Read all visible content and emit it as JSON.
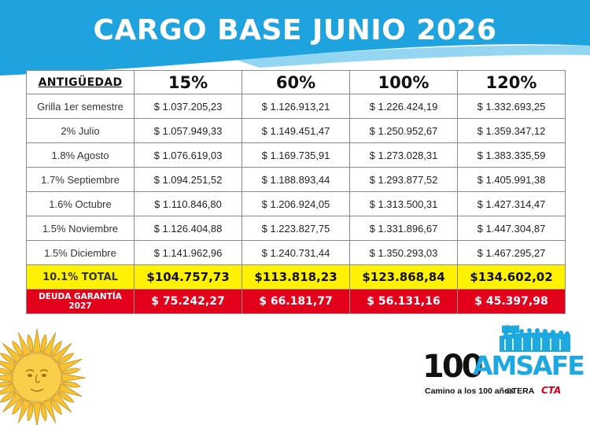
{
  "title": "CARGO BASE JUNIO 2026",
  "table": {
    "corner_header": "ANTIGÜEDAD",
    "columns": [
      "15%",
      "60%",
      "100%",
      "120%"
    ],
    "rows": [
      {
        "label": "Grilla 1er semestre",
        "values": [
          "$ 1.037.205,23",
          "$ 1.126.913,21",
          "$ 1.226.424,19",
          "$ 1.332.693,25"
        ]
      },
      {
        "label": "2% Julio",
        "values": [
          "$ 1.057.949,33",
          "$ 1.149.451,47",
          "$ 1.250.952,67",
          "$ 1.359.347,12"
        ]
      },
      {
        "label": "1.8% Agosto",
        "values": [
          "$ 1.076.619,03",
          "$ 1.169.735,91",
          "$ 1.273.028,31",
          "$ 1.383.335,59"
        ]
      },
      {
        "label": "1.7% Septiembre",
        "values": [
          "$ 1.094.251,52",
          "$ 1.188.893,44",
          "$ 1.293.877,52",
          "$ 1.405.991,38"
        ]
      },
      {
        "label": "1.6% Octubre",
        "values": [
          "$ 1.110.846,80",
          "$ 1.206.924,05",
          "$ 1.313.500,31",
          "$ 1.427.314,47"
        ]
      },
      {
        "label": "1.5% Noviembre",
        "values": [
          "$ 1.126.404,88",
          "$ 1.223.827,75",
          "$ 1.331.896,67",
          "$ 1.447.304,87"
        ]
      },
      {
        "label": "1.5% Diciembre",
        "values": [
          "$ 1.141.962,96",
          "$ 1.240.731,44",
          "$ 1.350.293,03",
          "$ 1.467.295,27"
        ]
      }
    ],
    "total": {
      "label": "10.1% TOTAL",
      "values": [
        "$104.757,73",
        "$113.818,23",
        "$123.868,84",
        "$134.602,02"
      ]
    },
    "debt": {
      "label": "DEUDA GARANTÍA 2027",
      "values": [
        "$ 75.242,27",
        "$ 66.181,77",
        "$ 56.131,16",
        "$ 45.397,98"
      ]
    }
  },
  "logo": {
    "number": "100",
    "name": "AMSAFE",
    "tagline": "Camino a los 100 años",
    "affiliation_1": "©TERA",
    "affiliation_2": "CTA",
    "badge": "AMSAFE"
  },
  "colors": {
    "header_blue": "#1fa3de",
    "total_yellow": "#fff200",
    "debt_red": "#e3001b",
    "brand_blue": "#1da8e0",
    "sun_yellow": "#f7c331"
  }
}
